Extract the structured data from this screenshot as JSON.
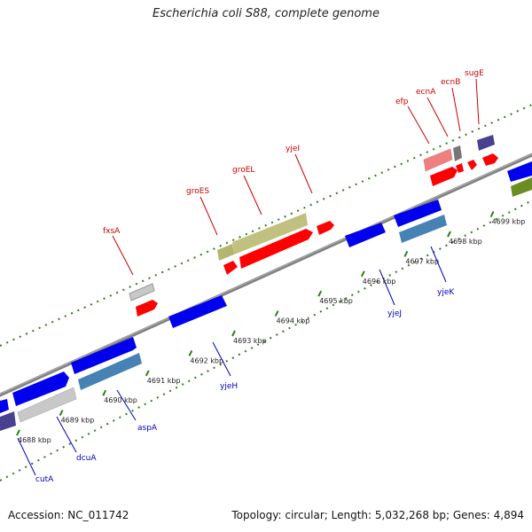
{
  "title": "Escherichia coli S88, complete genome",
  "accession": "Accession: NC_011742",
  "summary": "Topology: circular; Length: 5,032,268 bp; Genes: 4,894",
  "colors": {
    "backbone": "#888888",
    "plus_tick": "#2e7d1b",
    "label_plus": "#cc0000",
    "label_minus": "#0000bb"
  },
  "kbp_ticks": [
    {
      "label": "4688 kbp"
    },
    {
      "label": "4689 kbp"
    },
    {
      "label": "4690 kbp"
    },
    {
      "label": "4691 kbp"
    },
    {
      "label": "4692 kbp"
    },
    {
      "label": "4693 kbp"
    },
    {
      "label": "4694 kbp"
    },
    {
      "label": "4695 kbp"
    },
    {
      "label": "4696 kbp"
    },
    {
      "label": "4697 kbp"
    },
    {
      "label": "4698 kbp"
    },
    {
      "label": "4699 kbp"
    }
  ],
  "labels_plus": [
    "fxsA",
    "groES",
    "groEL",
    "yjeI",
    "efp",
    "ecnA",
    "ecnB",
    "sugE"
  ],
  "labels_minus": [
    "cutA",
    "dcuA",
    "aspA",
    "yjeH",
    "yjeJ",
    "yjeK"
  ]
}
